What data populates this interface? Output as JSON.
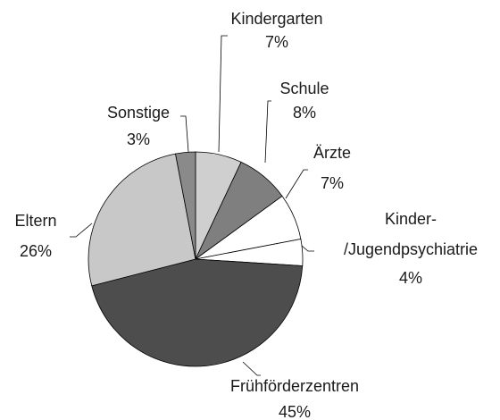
{
  "chart_data": {
    "type": "pie",
    "categories": [
      "Kindergarten",
      "Schule",
      "Ärzte",
      "Kinder-/Jugendpsychiatrie",
      "Frühförderzentren",
      "Eltern",
      "Sonstige"
    ],
    "values": [
      7,
      8,
      7,
      4,
      45,
      26,
      3
    ],
    "value_labels": [
      "7%",
      "8%",
      "7%",
      "4%",
      "45%",
      "26%",
      "3%"
    ],
    "colors": [
      "#cfcfcf",
      "#7f7f7f",
      "#ffffff",
      "#ffffff",
      "#4d4d4d",
      "#c8c8c8",
      "#8a8a8a"
    ]
  }
}
